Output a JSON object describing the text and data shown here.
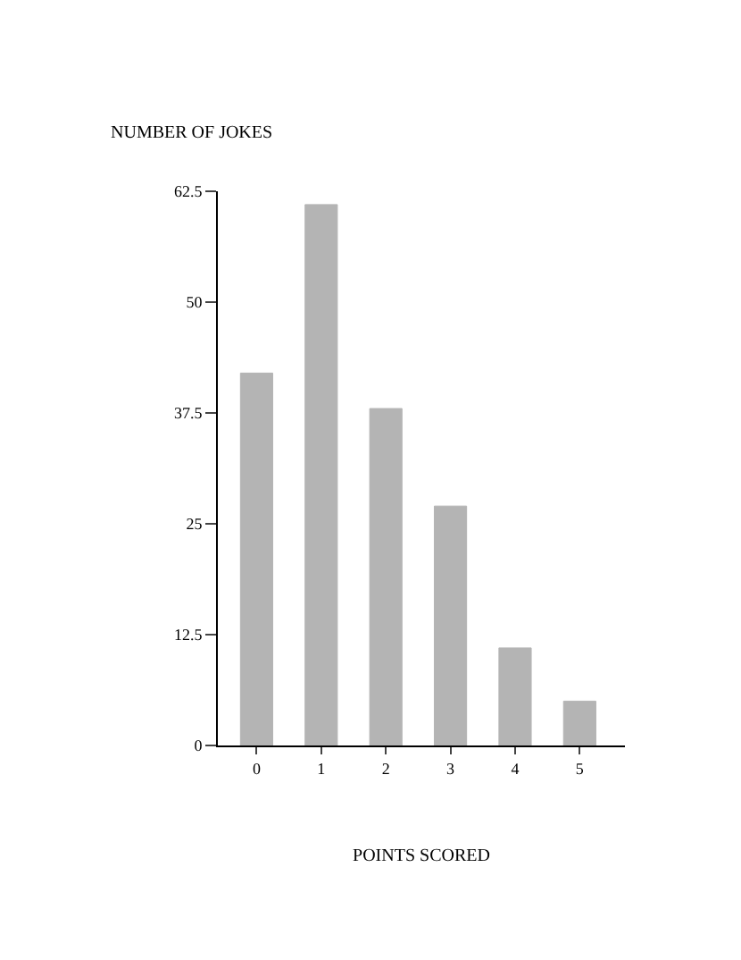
{
  "chart_data": {
    "type": "bar",
    "xlabel": "POINTS SCORED",
    "ylabel": "NUMBER OF JOKES",
    "categories": [
      "0",
      "1",
      "2",
      "3",
      "4",
      "5"
    ],
    "values": [
      42,
      61,
      38,
      27,
      11,
      5
    ],
    "color": "#b4b4b4",
    "ylim": [
      0,
      62.5
    ],
    "yticks": [
      0,
      12.5,
      25,
      37.5,
      50,
      62.5
    ]
  }
}
